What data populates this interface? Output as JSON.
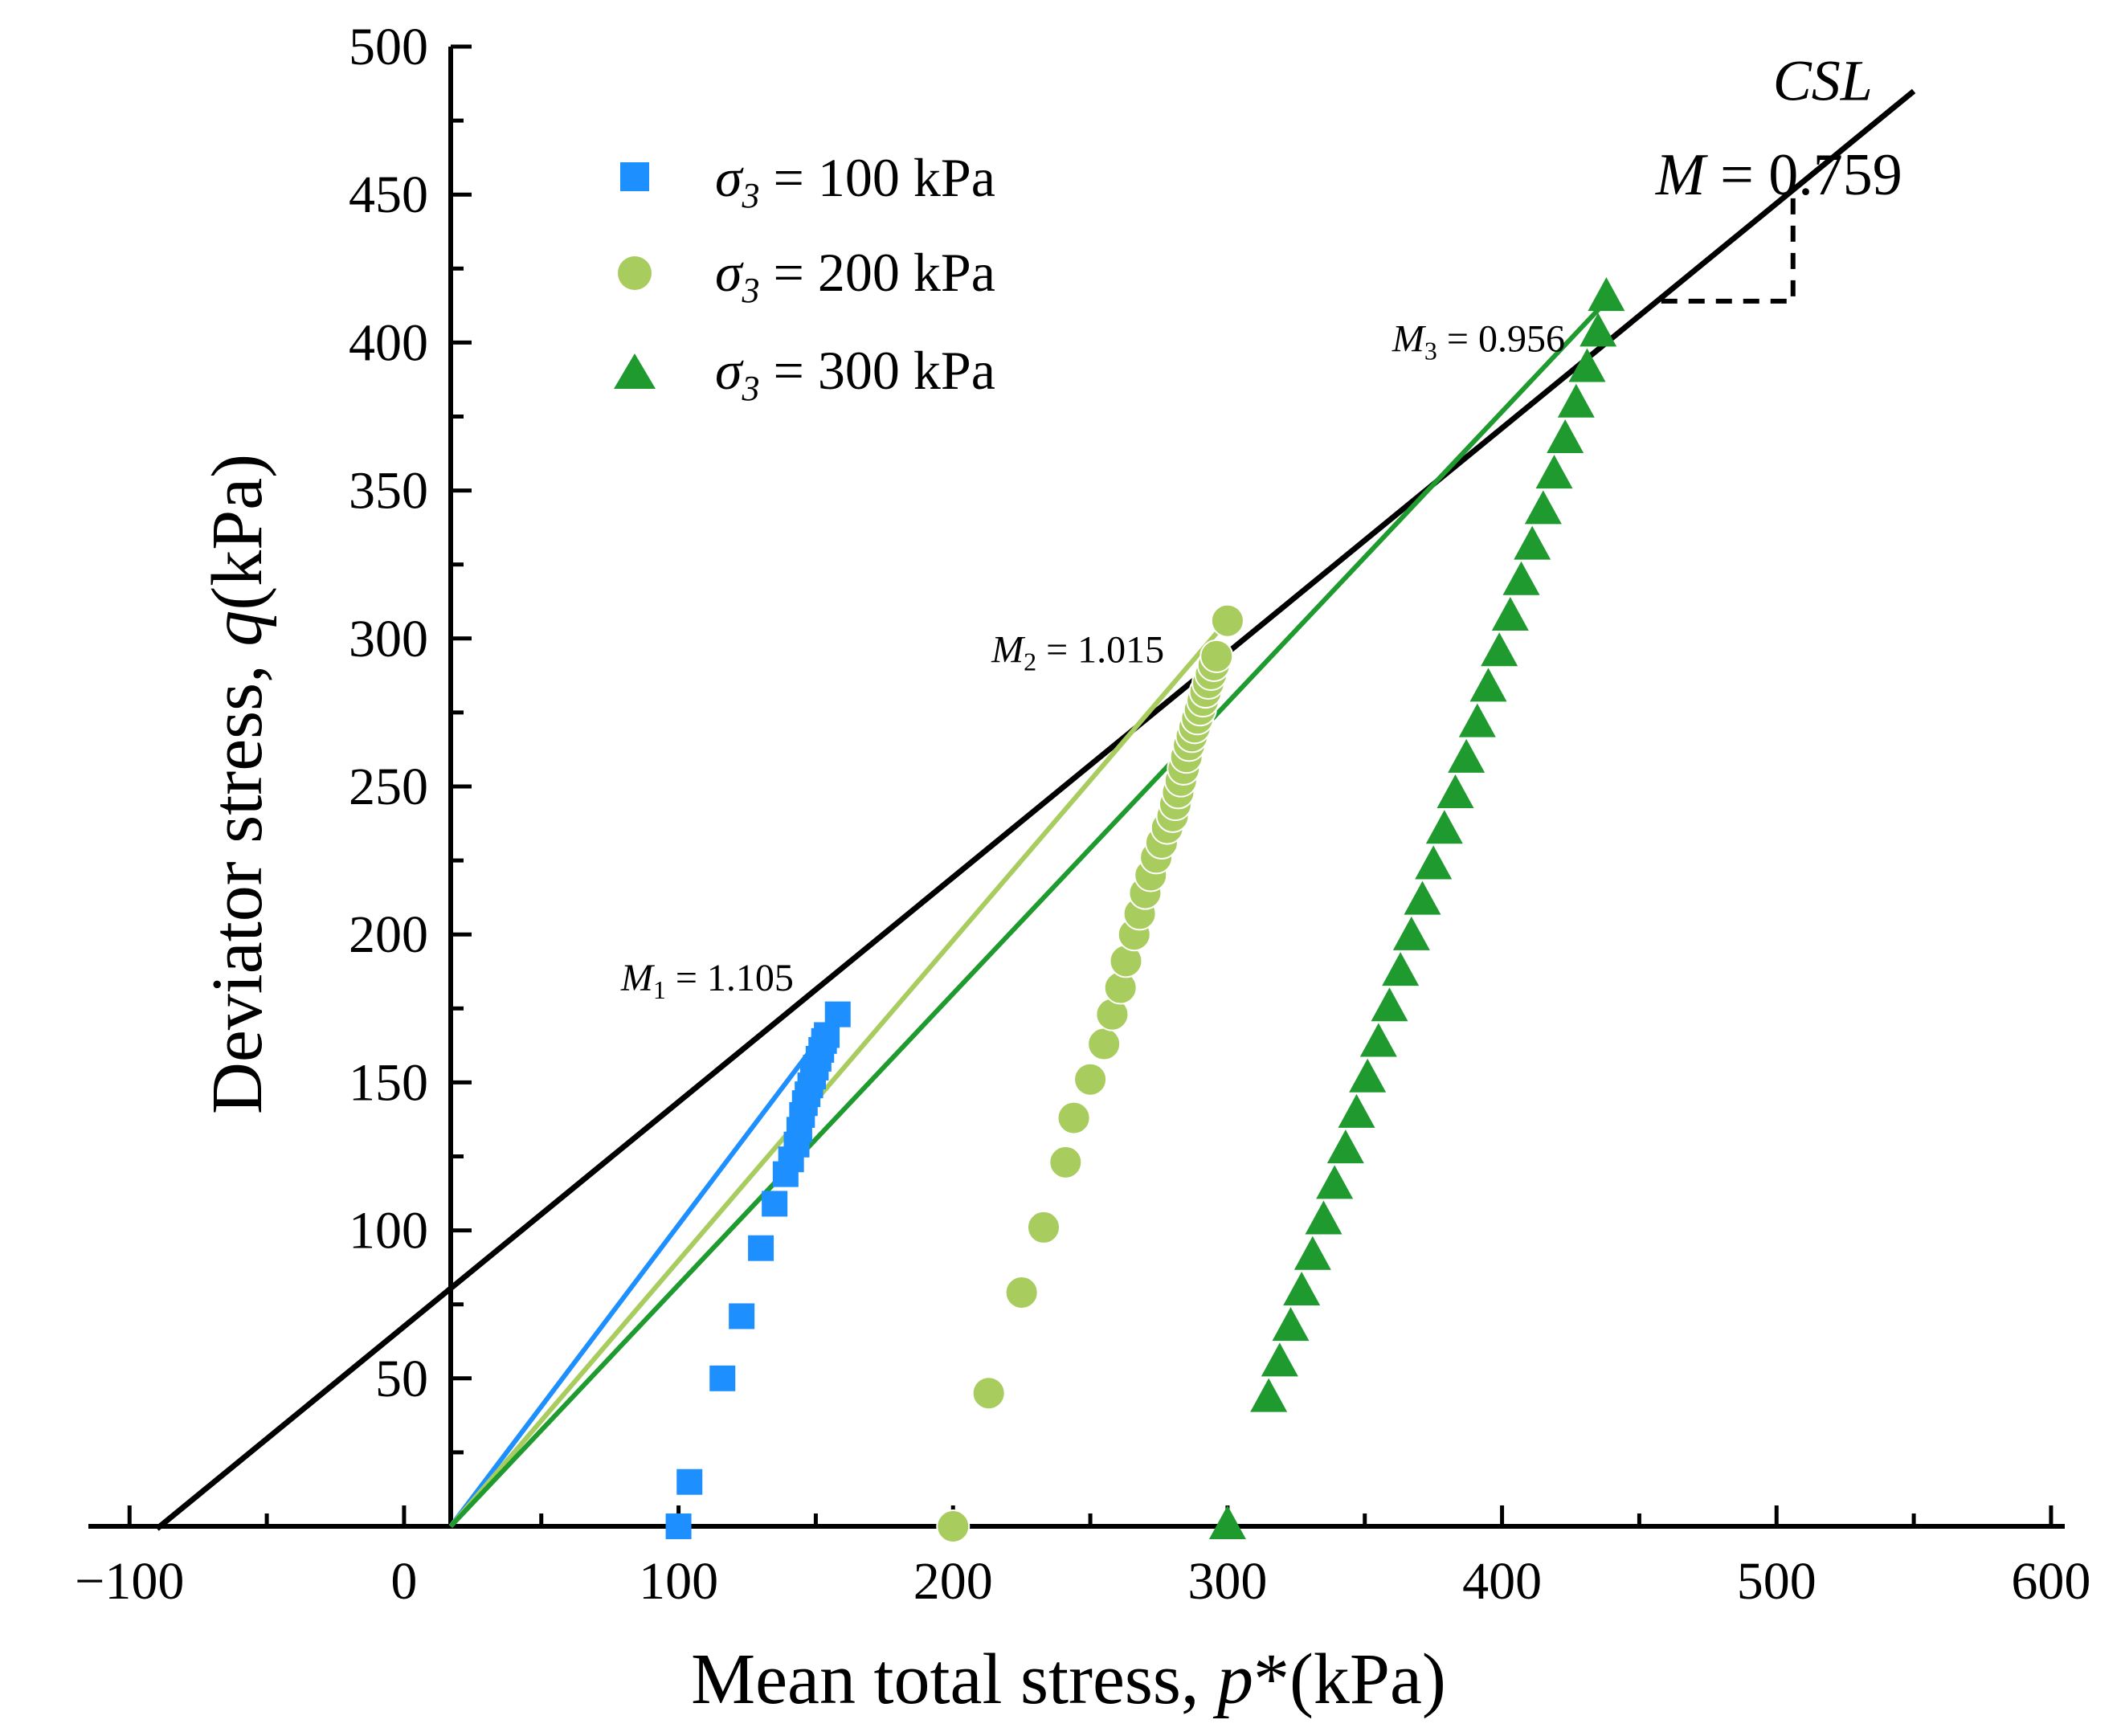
{
  "chart_data": {
    "type": "scatter",
    "xlabel": "Mean total stress, ",
    "xlabel_var": "p",
    "xlabel_unit": "*(kPa)",
    "ylabel": "Deviator stress, ",
    "ylabel_var": "q",
    "ylabel_unit": "(kPa)",
    "xlim": [
      -115,
      605
    ],
    "ylim": [
      0,
      500
    ],
    "x_ticks": [
      -100,
      0,
      100,
      200,
      300,
      400,
      500,
      600
    ],
    "x_tick_labels": [
      "−100",
      "0",
      "100",
      "200",
      "300",
      "400",
      "500",
      "600"
    ],
    "y_ticks": [
      50,
      100,
      150,
      200,
      250,
      300,
      350,
      400,
      450,
      500
    ],
    "y_tick_labels": [
      "50",
      "100",
      "150",
      "200",
      "250",
      "300",
      "350",
      "400",
      "450",
      "500"
    ],
    "y_axis_at_x": 17,
    "series": [
      {
        "name": "σ3 = 100 kPa",
        "legend_symbol": "σ",
        "legend_sub": "3",
        "legend_rest": " = 100 kPa",
        "marker": "square",
        "color": "#1e8fff",
        "x": [
          100,
          104,
          116,
          123,
          130,
          135,
          139,
          141,
          143,
          144,
          145,
          146,
          147,
          148,
          149,
          150,
          151,
          152,
          153,
          154,
          158
        ],
        "y": [
          0,
          15,
          50,
          71,
          94,
          109,
          119,
          124,
          129,
          134,
          139,
          143,
          146,
          149,
          152,
          155,
          158,
          161,
          164,
          166,
          173
        ]
      },
      {
        "name": "σ3 = 200 kPa",
        "legend_symbol": "σ",
        "legend_sub": "3",
        "legend_rest": " = 200 kPa",
        "marker": "circle",
        "color": "#a8cc5e",
        "x": [
          200,
          213,
          225,
          233,
          241,
          244,
          250,
          255,
          258,
          261,
          263,
          266,
          268,
          270,
          272,
          274,
          276,
          278,
          280,
          281,
          282,
          283,
          284,
          285,
          286,
          287,
          288,
          289,
          290,
          291,
          292,
          293,
          294,
          295,
          296,
          300
        ],
        "y": [
          0,
          45,
          79,
          101,
          123,
          138,
          151,
          163,
          173,
          182,
          191,
          200,
          207,
          214,
          220,
          226,
          231,
          236,
          240,
          244,
          248,
          252,
          256,
          260,
          264,
          267,
          270,
          273,
          276,
          279,
          282,
          285,
          288,
          291,
          294,
          306
        ]
      },
      {
        "name": "σ3 = 300 kPa",
        "legend_symbol": "σ",
        "legend_sub": "3",
        "legend_rest": " = 300 kPa",
        "marker": "triangle",
        "color": "#1e9a2e",
        "x": [
          300,
          315,
          319,
          323,
          327,
          331,
          335,
          339,
          343,
          347,
          351,
          355,
          359,
          363,
          367,
          371,
          375,
          379,
          383,
          387,
          391,
          395,
          399,
          403,
          407,
          411,
          415,
          419,
          423,
          427,
          431,
          435,
          438
        ],
        "y": [
          0,
          43,
          55,
          67,
          79,
          91,
          103,
          115,
          127,
          139,
          151,
          163,
          175,
          187,
          199,
          211,
          223,
          235,
          247,
          259,
          271,
          283,
          295,
          307,
          319,
          331,
          343,
          355,
          367,
          379,
          391,
          403,
          415
        ]
      }
    ],
    "lines": [
      {
        "name": "CSL",
        "color": "#000000",
        "x": [
          -90,
          550
        ],
        "y": [
          -0.8,
          484.96
        ]
      },
      {
        "name": "M1 line",
        "color": "#1e8fff",
        "x": [
          17,
          158
        ],
        "y": [
          0,
          173
        ]
      },
      {
        "name": "M2 line",
        "color": "#a8cc5e",
        "x": [
          17,
          298
        ],
        "y": [
          0,
          304
        ]
      },
      {
        "name": "M3 line",
        "color": "#1e9a2e",
        "x": [
          17,
          438
        ],
        "y": [
          0,
          414
        ]
      }
    ],
    "annotations": [
      {
        "id": "csl",
        "text": "CSL",
        "x": 535,
        "y": 482
      },
      {
        "id": "M",
        "main": "M",
        "rest": " = 0.759",
        "x": 456,
        "y": 450
      },
      {
        "id": "M1",
        "main": "M",
        "sub": "1",
        "rest": " = 1.105",
        "x": 79,
        "y": 181
      },
      {
        "id": "M2",
        "main": "M",
        "sub": "2",
        "rest": " = 1.015",
        "x": 214,
        "y": 292
      },
      {
        "id": "M3",
        "main": "M",
        "sub": "3",
        "rest": " = 0.956",
        "x": 360,
        "y": 397
      }
    ],
    "slope_triangle": {
      "x1": 458,
      "x2": 506,
      "y_low": 414,
      "y_high": 450
    }
  }
}
